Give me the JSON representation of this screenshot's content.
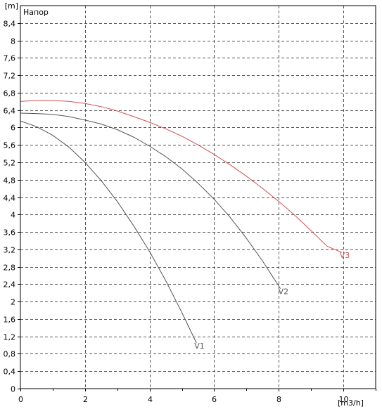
{
  "chart_data": {
    "type": "line",
    "title": "Напор",
    "y_unit": "[m]",
    "x_unit": "[m3/h]",
    "xlim": [
      0,
      11
    ],
    "ylim": [
      0,
      8.8
    ],
    "x_ticks": [
      "0",
      "2",
      "4",
      "6",
      "8",
      "10"
    ],
    "x_tick_values": [
      0,
      2,
      4,
      6,
      8,
      10
    ],
    "y_ticks": [
      "0",
      "0,4",
      "0,8",
      "1,2",
      "1,6",
      "2",
      "2,4",
      "2,8",
      "3,2",
      "3,6",
      "4",
      "4,4",
      "4,8",
      "5,2",
      "5,6",
      "6",
      "6,4",
      "6,8",
      "7,2",
      "7,6",
      "8",
      "8,4",
      "[m]"
    ],
    "y_tick_values": [
      0,
      0.4,
      0.8,
      1.2,
      1.6,
      2,
      2.4,
      2.8,
      3.2,
      3.6,
      4,
      4.4,
      4.8,
      5.2,
      5.6,
      6,
      6.4,
      6.8,
      7.2,
      7.6,
      8,
      8.4
    ],
    "grid": true,
    "series": [
      {
        "name": "V1",
        "color": "#555555",
        "x": [
          0,
          0.5,
          1,
          1.5,
          2,
          2.5,
          3,
          3.5,
          4,
          4.5,
          5,
          5.45
        ],
        "y": [
          6.15,
          6.02,
          5.82,
          5.55,
          5.2,
          4.78,
          4.3,
          3.75,
          3.15,
          2.48,
          1.75,
          1.05
        ]
      },
      {
        "name": "V2",
        "color": "#555555",
        "x": [
          0,
          0.5,
          1,
          1.5,
          2,
          2.5,
          3,
          3.5,
          4,
          4.5,
          5,
          5.5,
          6,
          6.5,
          7,
          7.5,
          8.05
        ],
        "y": [
          6.33,
          6.32,
          6.3,
          6.25,
          6.17,
          6.08,
          5.95,
          5.78,
          5.57,
          5.33,
          5.05,
          4.72,
          4.35,
          3.93,
          3.45,
          2.93,
          2.3
        ]
      },
      {
        "name": "V3",
        "color": "#d05050",
        "x": [
          0,
          0.5,
          1,
          1.5,
          2,
          2.5,
          3,
          3.5,
          4,
          4.5,
          5,
          5.5,
          6,
          6.5,
          7,
          7.5,
          8,
          8.5,
          9,
          9.5,
          9.95
        ],
        "y": [
          6.6,
          6.62,
          6.62,
          6.6,
          6.55,
          6.48,
          6.38,
          6.25,
          6.12,
          5.97,
          5.8,
          5.6,
          5.38,
          5.14,
          4.88,
          4.6,
          4.3,
          3.98,
          3.63,
          3.27,
          3.13
        ]
      }
    ]
  }
}
